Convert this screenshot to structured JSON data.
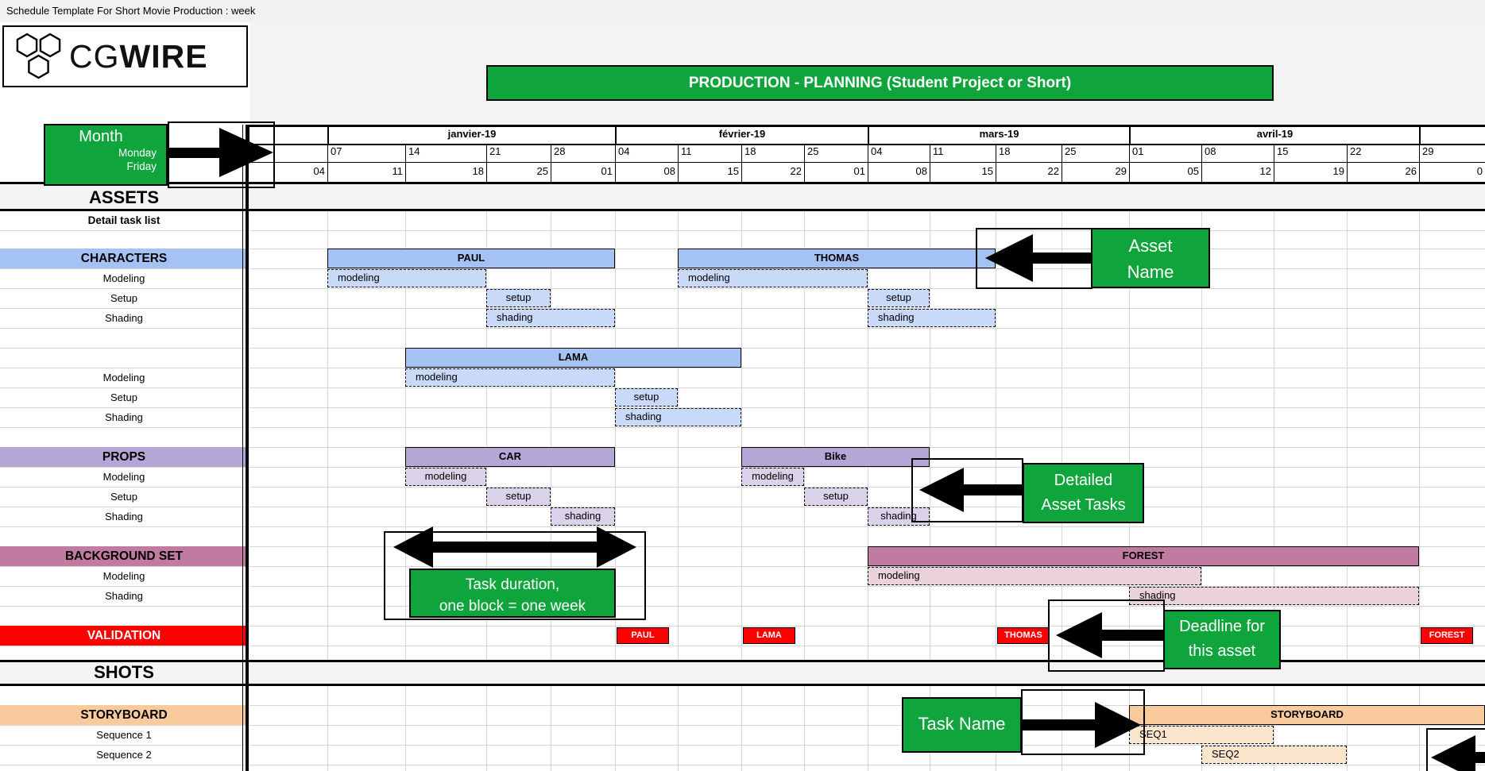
{
  "title_bar": {
    "text": "Schedule Template For Short Movie Production : week"
  },
  "logo": {
    "cg": "CG",
    "wire": "WIRE"
  },
  "banner": {
    "text": "PRODUCTION - PLANNING (Student Project or Short)"
  },
  "colors": {
    "green": "#0FA53C",
    "red": "#FF0000",
    "blue_header": "#A4C2F4",
    "blue_light": "#C9DAF8",
    "purple_header": "#B4A7D6",
    "purple_light": "#D9D2E9",
    "mauve_header": "#C27BA0",
    "mauve_light": "#EAD1DC",
    "orange_header": "#F9CB9C",
    "orange_light": "#FCE5CD"
  },
  "sidebar": {
    "rows": [
      {
        "id": "assets",
        "label": "ASSETS",
        "type": "major"
      },
      {
        "id": "detail",
        "label": "Detail task list",
        "type": "bold-small"
      },
      {
        "id": "sp1",
        "label": "",
        "type": "empty"
      },
      {
        "id": "characters",
        "label": "CHARACTERS",
        "type": "section",
        "color": "#A4C2F4"
      },
      {
        "id": "c-mod",
        "label": "Modeling",
        "type": "task"
      },
      {
        "id": "c-setup",
        "label": "Setup",
        "type": "task"
      },
      {
        "id": "c-shad",
        "label": "Shading",
        "type": "task"
      },
      {
        "id": "sp2",
        "label": "",
        "type": "empty"
      },
      {
        "id": "lama-row",
        "label": "",
        "type": "empty"
      },
      {
        "id": "l-mod",
        "label": "Modeling",
        "type": "task"
      },
      {
        "id": "l-setup",
        "label": "Setup",
        "type": "task"
      },
      {
        "id": "l-shad",
        "label": "Shading",
        "type": "task"
      },
      {
        "id": "sp3",
        "label": "",
        "type": "empty"
      },
      {
        "id": "props",
        "label": "PROPS",
        "type": "section",
        "color": "#B4A7D6"
      },
      {
        "id": "p-mod",
        "label": "Modeling",
        "type": "task"
      },
      {
        "id": "p-setup",
        "label": "Setup",
        "type": "task"
      },
      {
        "id": "p-shad",
        "label": "Shading",
        "type": "task"
      },
      {
        "id": "sp4",
        "label": "",
        "type": "empty"
      },
      {
        "id": "bg",
        "label": "BACKGROUND SET",
        "type": "section",
        "color": "#C27BA0"
      },
      {
        "id": "b-mod",
        "label": "Modeling",
        "type": "task"
      },
      {
        "id": "b-shad",
        "label": "Shading",
        "type": "task"
      },
      {
        "id": "sp5",
        "label": "",
        "type": "empty"
      },
      {
        "id": "validation",
        "label": "VALIDATION",
        "type": "section-red",
        "color": "#FF0000"
      },
      {
        "id": "sp6",
        "label": "",
        "type": "empty"
      },
      {
        "id": "shots",
        "label": "SHOTS",
        "type": "major"
      },
      {
        "id": "sp7",
        "label": "",
        "type": "empty"
      },
      {
        "id": "storyboard",
        "label": "STORYBOARD",
        "type": "section",
        "color": "#F9CB9C"
      },
      {
        "id": "seq1",
        "label": "Sequence 1",
        "type": "task"
      },
      {
        "id": "seq2",
        "label": "Sequence 2",
        "type": "task"
      },
      {
        "id": "sp8",
        "label": "",
        "type": "empty"
      }
    ]
  },
  "chart_data": {
    "type": "gantt",
    "unit": "week",
    "timeline": {
      "months": [
        {
          "label": "",
          "s": 0,
          "e": 1
        },
        {
          "label": "janvier-19",
          "s": 1,
          "e": 5
        },
        {
          "label": "février-19",
          "s": 5,
          "e": 9
        },
        {
          "label": "mars-19",
          "s": 9,
          "e": 13
        },
        {
          "label": "avril-19",
          "s": 13,
          "e": 17
        },
        {
          "label": "",
          "s": 17,
          "e": 18
        }
      ],
      "weeks": [
        {
          "monday": "31",
          "friday": "04"
        },
        {
          "monday": "07",
          "friday": "11"
        },
        {
          "monday": "14",
          "friday": "18"
        },
        {
          "monday": "21",
          "friday": "25"
        },
        {
          "monday": "28",
          "friday": "01"
        },
        {
          "monday": "04",
          "friday": "08"
        },
        {
          "monday": "11",
          "friday": "15"
        },
        {
          "monday": "18",
          "friday": "22"
        },
        {
          "monday": "25",
          "friday": "01"
        },
        {
          "monday": "04",
          "friday": "08"
        },
        {
          "monday": "11",
          "friday": "15"
        },
        {
          "monday": "18",
          "friday": "22"
        },
        {
          "monday": "25",
          "friday": "29"
        },
        {
          "monday": "01",
          "friday": "05"
        },
        {
          "monday": "08",
          "friday": "12"
        },
        {
          "monday": "15",
          "friday": "19"
        },
        {
          "monday": "22",
          "friday": "26"
        },
        {
          "monday": "29",
          "friday": "0"
        }
      ]
    },
    "bars": [
      {
        "row": "characters",
        "label": "PAUL",
        "kind": "header",
        "color": "blue",
        "s": 1,
        "e": 5,
        "align": "center"
      },
      {
        "row": "c-mod",
        "label": "modeling",
        "kind": "task",
        "color": "blue",
        "s": 1,
        "e": 3,
        "align": "left"
      },
      {
        "row": "c-setup",
        "label": "setup",
        "kind": "task",
        "color": "blue",
        "s": 3,
        "e": 4,
        "align": "center"
      },
      {
        "row": "c-shad",
        "label": "shading",
        "kind": "task",
        "color": "blue",
        "s": 3,
        "e": 5,
        "align": "left"
      },
      {
        "row": "characters",
        "label": "THOMAS",
        "kind": "header",
        "color": "blue",
        "s": 6,
        "e": 11,
        "align": "center"
      },
      {
        "row": "c-mod",
        "label": "modeling",
        "kind": "task",
        "color": "blue",
        "s": 6,
        "e": 9,
        "align": "left"
      },
      {
        "row": "c-setup",
        "label": "setup",
        "kind": "task",
        "color": "blue",
        "s": 9,
        "e": 10,
        "align": "center"
      },
      {
        "row": "c-shad",
        "label": "shading",
        "kind": "task",
        "color": "blue",
        "s": 9,
        "e": 11,
        "align": "left"
      },
      {
        "row": "lama-row",
        "label": "LAMA",
        "kind": "header",
        "color": "blue",
        "s": 2,
        "e": 7,
        "align": "center"
      },
      {
        "row": "l-mod",
        "label": "modeling",
        "kind": "task",
        "color": "blue",
        "s": 2,
        "e": 5,
        "align": "left"
      },
      {
        "row": "l-setup",
        "label": "setup",
        "kind": "task",
        "color": "blue",
        "s": 5,
        "e": 6,
        "align": "center"
      },
      {
        "row": "l-shad",
        "label": "shading",
        "kind": "task",
        "color": "blue",
        "s": 5,
        "e": 7,
        "align": "left"
      },
      {
        "row": "props",
        "label": "CAR",
        "kind": "header",
        "color": "purple",
        "s": 2,
        "e": 5,
        "align": "center"
      },
      {
        "row": "p-mod",
        "label": "modeling",
        "kind": "task",
        "color": "purple",
        "s": 2,
        "e": 3,
        "align": "center"
      },
      {
        "row": "p-setup",
        "label": "setup",
        "kind": "task",
        "color": "purple",
        "s": 3,
        "e": 4,
        "align": "center"
      },
      {
        "row": "p-shad",
        "label": "shading",
        "kind": "task",
        "color": "purple",
        "s": 4,
        "e": 5,
        "align": "center"
      },
      {
        "row": "props",
        "label": "Bike",
        "kind": "header",
        "color": "purple",
        "s": 7,
        "e": 10,
        "align": "center"
      },
      {
        "row": "p-mod",
        "label": "modeling",
        "kind": "task",
        "color": "purple",
        "s": 7,
        "e": 8,
        "align": "center"
      },
      {
        "row": "p-setup",
        "label": "setup",
        "kind": "task",
        "color": "purple",
        "s": 8,
        "e": 9,
        "align": "center"
      },
      {
        "row": "p-shad",
        "label": "shading",
        "kind": "task",
        "color": "purple",
        "s": 9,
        "e": 10,
        "align": "center"
      },
      {
        "row": "bg",
        "label": "FOREST",
        "kind": "header",
        "color": "mauve",
        "s": 9,
        "e": 17,
        "align": "center"
      },
      {
        "row": "b-mod",
        "label": "modeling",
        "kind": "task",
        "color": "mauve",
        "s": 9,
        "e": 14,
        "align": "left"
      },
      {
        "row": "b-shad",
        "label": "shading",
        "kind": "task",
        "color": "mauve",
        "s": 13,
        "e": 17,
        "align": "left"
      },
      {
        "row": "storyboard",
        "label": "STORYBOARD",
        "kind": "header",
        "color": "orange",
        "s": 13,
        "e": 18,
        "align": "center"
      },
      {
        "row": "seq1",
        "label": "SEQ1",
        "kind": "task",
        "color": "orange",
        "s": 13,
        "e": 15,
        "align": "left"
      },
      {
        "row": "seq2",
        "label": "SEQ2",
        "kind": "task",
        "color": "orange",
        "s": 14,
        "e": 16,
        "align": "left"
      }
    ],
    "validation_chips": [
      {
        "label": "PAUL",
        "week": 5
      },
      {
        "label": "LAMA",
        "week": 7
      },
      {
        "label": "THOMAS",
        "week": 11
      },
      {
        "label": "FOREST",
        "week": 17
      }
    ]
  },
  "callouts": {
    "month": {
      "title": "Month",
      "line2": "Monday",
      "line3": "Friday"
    },
    "asset_name": {
      "line1": "Asset",
      "line2": "Name"
    },
    "detailed": {
      "line1": "Detailed",
      "line2": "Asset Tasks"
    },
    "duration": {
      "line1": "Task duration,",
      "line2": "one block = one week"
    },
    "deadline": {
      "line1": "Deadline for",
      "line2": "this asset"
    },
    "task_name": {
      "label": "Task Name"
    }
  }
}
